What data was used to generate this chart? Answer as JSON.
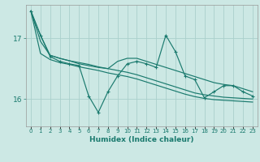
{
  "xlabel": "Humidex (Indice chaleur)",
  "background_color": "#cce8e4",
  "grid_color": "#aad0cc",
  "line_color": "#1a7a6e",
  "xlim": [
    -0.5,
    23.5
  ],
  "ylim": [
    15.55,
    17.55
  ],
  "yticks": [
    16,
    17
  ],
  "x_vals": [
    0,
    1,
    2,
    3,
    4,
    5,
    6,
    7,
    8,
    9,
    10,
    11,
    12,
    13,
    14,
    15,
    16,
    17,
    18,
    19,
    20,
    21,
    22,
    23
  ],
  "series_main": [
    17.45,
    17.05,
    16.7,
    16.62,
    16.58,
    16.55,
    16.05,
    15.78,
    16.12,
    16.38,
    16.58,
    16.62,
    16.58,
    16.52,
    17.05,
    16.78,
    16.38,
    16.32,
    16.02,
    16.12,
    16.22,
    16.22,
    16.12,
    16.05
  ],
  "series_trend1": [
    17.45,
    16.75,
    16.65,
    16.6,
    16.57,
    16.53,
    16.5,
    16.47,
    16.43,
    16.4,
    16.37,
    16.33,
    16.28,
    16.23,
    16.18,
    16.13,
    16.08,
    16.04,
    16.01,
    15.99,
    15.98,
    15.97,
    15.96,
    15.95
  ],
  "series_trend2": [
    17.45,
    16.95,
    16.72,
    16.67,
    16.63,
    16.6,
    16.57,
    16.53,
    16.5,
    16.47,
    16.44,
    16.4,
    16.35,
    16.3,
    16.25,
    16.2,
    16.15,
    16.1,
    16.07,
    16.05,
    16.03,
    16.02,
    16.01,
    16.0
  ],
  "series_alt": [
    17.45,
    17.05,
    16.72,
    16.67,
    16.63,
    16.58,
    16.55,
    16.52,
    16.5,
    16.62,
    16.67,
    16.67,
    16.62,
    16.57,
    16.52,
    16.47,
    16.42,
    16.37,
    16.32,
    16.27,
    16.24,
    16.22,
    16.17,
    16.12
  ]
}
